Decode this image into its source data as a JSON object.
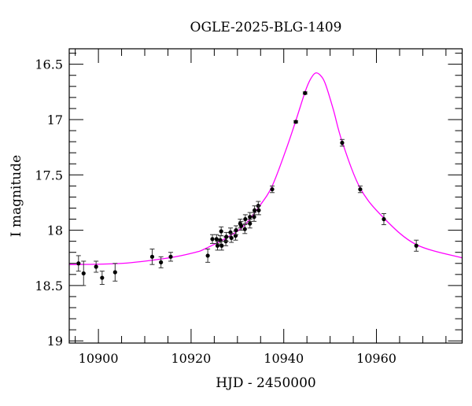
{
  "chart_data": {
    "type": "scatter",
    "title": "OGLE-2025-BLG-1409",
    "xlabel": "HJD - 2450000",
    "ylabel": "I magnitude",
    "xlim": [
      10893.7,
      10978.5
    ],
    "ylim": [
      16.36,
      19.02
    ],
    "y_inverted": true,
    "x_ticks": [
      10900,
      10920,
      10940,
      10960
    ],
    "x_tick_labels": [
      "10900",
      "10920",
      "10940",
      "10960"
    ],
    "x_minor_step": 5,
    "y_ticks": [
      16.5,
      17,
      17.5,
      18,
      18.5,
      19
    ],
    "y_tick_labels": [
      "16.5",
      "17",
      "17.5",
      "18",
      "18.5",
      "19"
    ],
    "y_minor_step": 0.1,
    "grid": false,
    "colors": {
      "points": "#000000",
      "model": "#ff00ff"
    },
    "points": [
      {
        "x": 10895.7,
        "y": 18.3,
        "err": 0.07
      },
      {
        "x": 10896.8,
        "y": 18.39,
        "err": 0.11
      },
      {
        "x": 10899.5,
        "y": 18.33,
        "err": 0.05
      },
      {
        "x": 10900.8,
        "y": 18.43,
        "err": 0.06
      },
      {
        "x": 10903.6,
        "y": 18.38,
        "err": 0.08
      },
      {
        "x": 10911.6,
        "y": 18.24,
        "err": 0.07
      },
      {
        "x": 10913.5,
        "y": 18.29,
        "err": 0.05
      },
      {
        "x": 10915.6,
        "y": 18.24,
        "err": 0.04
      },
      {
        "x": 10923.6,
        "y": 18.23,
        "err": 0.06
      },
      {
        "x": 10924.6,
        "y": 18.08,
        "err": 0.04
      },
      {
        "x": 10925.5,
        "y": 18.08,
        "err": 0.04
      },
      {
        "x": 10925.7,
        "y": 18.14,
        "err": 0.04
      },
      {
        "x": 10926.3,
        "y": 18.09,
        "err": 0.04
      },
      {
        "x": 10926.5,
        "y": 18.01,
        "err": 0.04
      },
      {
        "x": 10926.6,
        "y": 18.14,
        "err": 0.04
      },
      {
        "x": 10927.5,
        "y": 18.1,
        "err": 0.04
      },
      {
        "x": 10927.6,
        "y": 18.06,
        "err": 0.04
      },
      {
        "x": 10928.5,
        "y": 18.02,
        "err": 0.04
      },
      {
        "x": 10928.7,
        "y": 18.07,
        "err": 0.04
      },
      {
        "x": 10929.6,
        "y": 18.05,
        "err": 0.04
      },
      {
        "x": 10929.7,
        "y": 18.0,
        "err": 0.04
      },
      {
        "x": 10930.6,
        "y": 17.94,
        "err": 0.04
      },
      {
        "x": 10930.8,
        "y": 17.96,
        "err": 0.04
      },
      {
        "x": 10931.6,
        "y": 17.99,
        "err": 0.04
      },
      {
        "x": 10931.7,
        "y": 17.9,
        "err": 0.04
      },
      {
        "x": 10932.7,
        "y": 17.88,
        "err": 0.04
      },
      {
        "x": 10932.7,
        "y": 17.94,
        "err": 0.04
      },
      {
        "x": 10933.6,
        "y": 17.88,
        "err": 0.04
      },
      {
        "x": 10933.7,
        "y": 17.82,
        "err": 0.04
      },
      {
        "x": 10934.5,
        "y": 17.78,
        "err": 0.04
      },
      {
        "x": 10934.6,
        "y": 17.82,
        "err": 0.04
      },
      {
        "x": 10937.5,
        "y": 17.63,
        "err": 0.03
      },
      {
        "x": 10942.6,
        "y": 17.02,
        "err": 0.01
      },
      {
        "x": 10944.6,
        "y": 16.76,
        "err": 0.01
      },
      {
        "x": 10952.6,
        "y": 17.21,
        "err": 0.03
      },
      {
        "x": 10956.5,
        "y": 17.63,
        "err": 0.03
      },
      {
        "x": 10961.6,
        "y": 17.9,
        "err": 0.05
      },
      {
        "x": 10968.6,
        "y": 18.14,
        "err": 0.05
      }
    ],
    "model_curve": [
      [
        10893.7,
        18.31
      ],
      [
        10905.0,
        18.3
      ],
      [
        10915.2,
        18.25
      ],
      [
        10920.9,
        18.2
      ],
      [
        10922.9,
        18.17
      ],
      [
        10928.0,
        18.06
      ],
      [
        10931.4,
        17.96
      ],
      [
        10934.8,
        17.78
      ],
      [
        10937.5,
        17.6
      ],
      [
        10940.5,
        17.27
      ],
      [
        10942.6,
        17.01
      ],
      [
        10944.6,
        16.75
      ],
      [
        10945.7,
        16.64
      ],
      [
        10946.8,
        16.58
      ],
      [
        10947.9,
        16.6
      ],
      [
        10949.0,
        16.68
      ],
      [
        10950.7,
        16.91
      ],
      [
        10952.6,
        17.2
      ],
      [
        10956.5,
        17.62
      ],
      [
        10961.6,
        17.89
      ],
      [
        10968.6,
        18.13
      ],
      [
        10978.5,
        18.25
      ]
    ]
  }
}
